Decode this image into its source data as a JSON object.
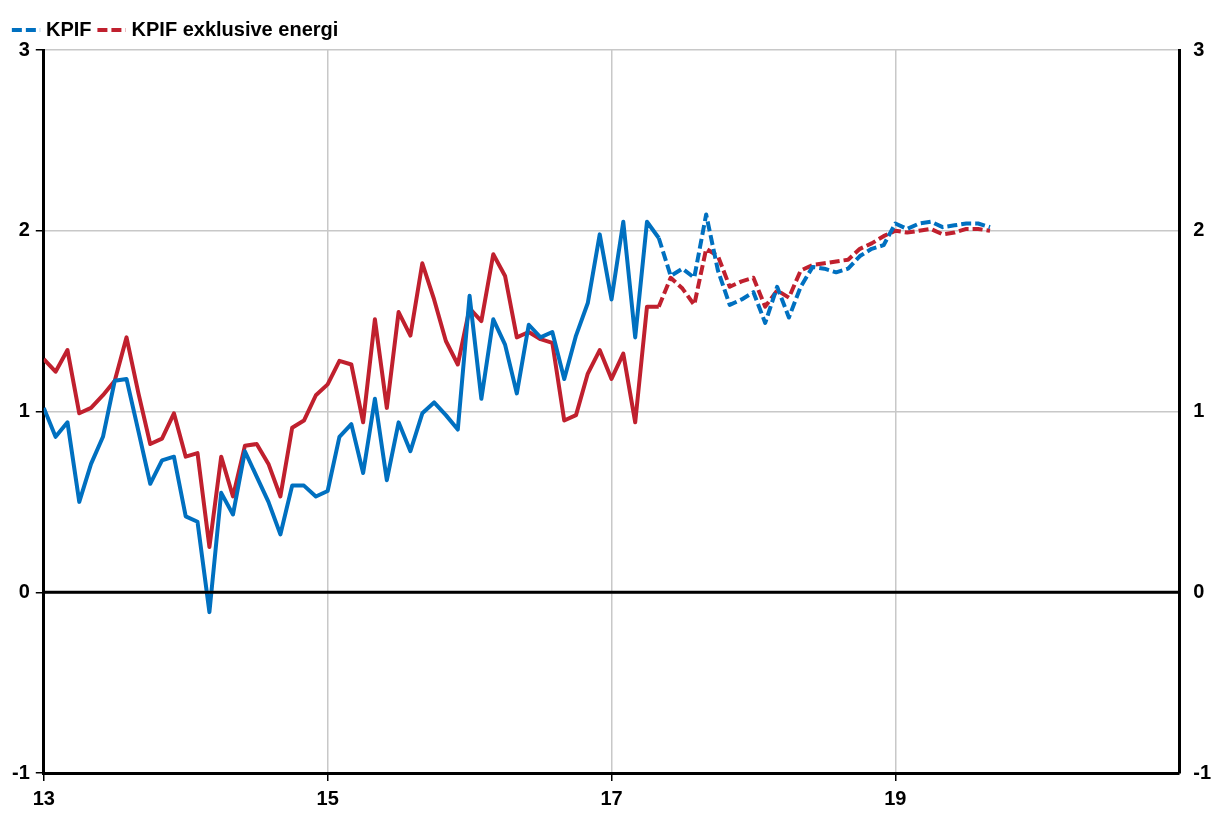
{
  "chart_data": {
    "type": "line",
    "xlim": [
      13,
      21
    ],
    "xticks": [
      13,
      15,
      17,
      19
    ],
    "ylim": [
      -1,
      3
    ],
    "yticks": [
      -1,
      0,
      1,
      2,
      3
    ],
    "y2lim": [
      -1,
      3
    ],
    "y2ticks": [
      -1,
      0,
      1,
      2,
      3
    ],
    "grid": true,
    "legend": "top left",
    "marker": "none",
    "ref_lines": [
      {
        "axis": "y",
        "value": 0,
        "color": "#000000"
      }
    ],
    "series": [
      {
        "color": "#0070c0",
        "line_style": "solid",
        "x": [
          13,
          13.083,
          13.167,
          13.25,
          13.333,
          13.417,
          13.5,
          13.583,
          13.667,
          13.75,
          13.833,
          13.917,
          14,
          14.083,
          14.167,
          14.25,
          14.333,
          14.417,
          14.5,
          14.583,
          14.667,
          14.75,
          14.833,
          14.917,
          15,
          15.083,
          15.167,
          15.25,
          15.333,
          15.417,
          15.5,
          15.583,
          15.667,
          15.75,
          15.833,
          15.917,
          16,
          16.083,
          16.167,
          16.25,
          16.333,
          16.417,
          16.5,
          16.583,
          16.667,
          16.75,
          16.833,
          16.917,
          17,
          17.083,
          17.167,
          17.25,
          17.333
        ],
        "values": [
          1.02,
          0.86,
          0.94,
          0.5,
          0.71,
          0.86,
          1.17,
          1.18,
          0.89,
          0.6,
          0.73,
          0.75,
          0.42,
          0.39,
          -0.11,
          0.55,
          0.43,
          0.78,
          0.64,
          0.5,
          0.32,
          0.59,
          0.59,
          0.53,
          0.56,
          0.86,
          0.93,
          0.66,
          1.07,
          0.62,
          0.94,
          0.78,
          0.99,
          1.05,
          0.98,
          0.9,
          1.64,
          1.07,
          1.51,
          1.37,
          1.1,
          1.48,
          1.41,
          1.44,
          1.18,
          1.42,
          1.6,
          1.98,
          1.62,
          2.05,
          1.41,
          2.05,
          1.96
        ]
      },
      {
        "color": "#c0202e",
        "line_style": "solid",
        "x": [
          13,
          13.083,
          13.167,
          13.25,
          13.333,
          13.417,
          13.5,
          13.583,
          13.667,
          13.75,
          13.833,
          13.917,
          14,
          14.083,
          14.167,
          14.25,
          14.333,
          14.417,
          14.5,
          14.583,
          14.667,
          14.75,
          14.833,
          14.917,
          15,
          15.083,
          15.167,
          15.25,
          15.333,
          15.417,
          15.5,
          15.583,
          15.667,
          15.75,
          15.833,
          15.917,
          16,
          16.083,
          16.167,
          16.25,
          16.333,
          16.417,
          16.5,
          16.583,
          16.667,
          16.75,
          16.833,
          16.917,
          17,
          17.083,
          17.167,
          17.25,
          17.333
        ],
        "values": [
          1.29,
          1.22,
          1.34,
          0.99,
          1.02,
          1.09,
          1.17,
          1.41,
          1.1,
          0.82,
          0.85,
          0.99,
          0.75,
          0.77,
          0.25,
          0.75,
          0.53,
          0.81,
          0.82,
          0.71,
          0.53,
          0.91,
          0.95,
          1.09,
          1.15,
          1.28,
          1.26,
          0.94,
          1.51,
          1.02,
          1.55,
          1.42,
          1.82,
          1.62,
          1.39,
          1.26,
          1.57,
          1.5,
          1.87,
          1.75,
          1.41,
          1.44,
          1.4,
          1.38,
          0.95,
          0.98,
          1.21,
          1.34,
          1.18,
          1.32,
          0.94,
          1.58,
          1.58
        ]
      },
      {
        "name": "KPIF",
        "color": "#0070c0",
        "line_style": "dashed",
        "x": [
          17.333,
          17.417,
          17.5,
          17.583,
          17.667,
          17.75,
          17.833,
          17.917,
          18,
          18.083,
          18.167,
          18.25,
          18.333,
          18.417,
          18.5,
          18.583,
          18.667,
          18.75,
          18.833,
          18.917,
          19,
          19.083,
          19.167,
          19.25,
          19.333,
          19.417,
          19.5,
          19.583,
          19.667
        ],
        "values": [
          1.96,
          1.75,
          1.79,
          1.74,
          2.09,
          1.78,
          1.59,
          1.62,
          1.66,
          1.49,
          1.69,
          1.52,
          1.69,
          1.8,
          1.79,
          1.77,
          1.79,
          1.86,
          1.9,
          1.92,
          2.04,
          2.01,
          2.04,
          2.05,
          2.02,
          2.03,
          2.04,
          2.04,
          2.02
        ]
      },
      {
        "name": "KPIF exklusive energi",
        "color": "#c0202e",
        "line_style": "dashed",
        "x": [
          17.333,
          17.417,
          17.5,
          17.583,
          17.667,
          17.75,
          17.833,
          17.917,
          18,
          18.083,
          18.167,
          18.25,
          18.333,
          18.417,
          18.5,
          18.583,
          18.667,
          18.75,
          18.833,
          18.917,
          19,
          19.083,
          19.167,
          19.25,
          19.333,
          19.417,
          19.5,
          19.583,
          19.667
        ],
        "values": [
          1.58,
          1.74,
          1.68,
          1.59,
          1.9,
          1.86,
          1.69,
          1.72,
          1.74,
          1.58,
          1.67,
          1.63,
          1.78,
          1.81,
          1.82,
          1.83,
          1.84,
          1.9,
          1.93,
          1.97,
          2.0,
          1.99,
          2.0,
          2.01,
          1.98,
          1.99,
          2.01,
          2.01,
          2.0
        ]
      }
    ]
  }
}
